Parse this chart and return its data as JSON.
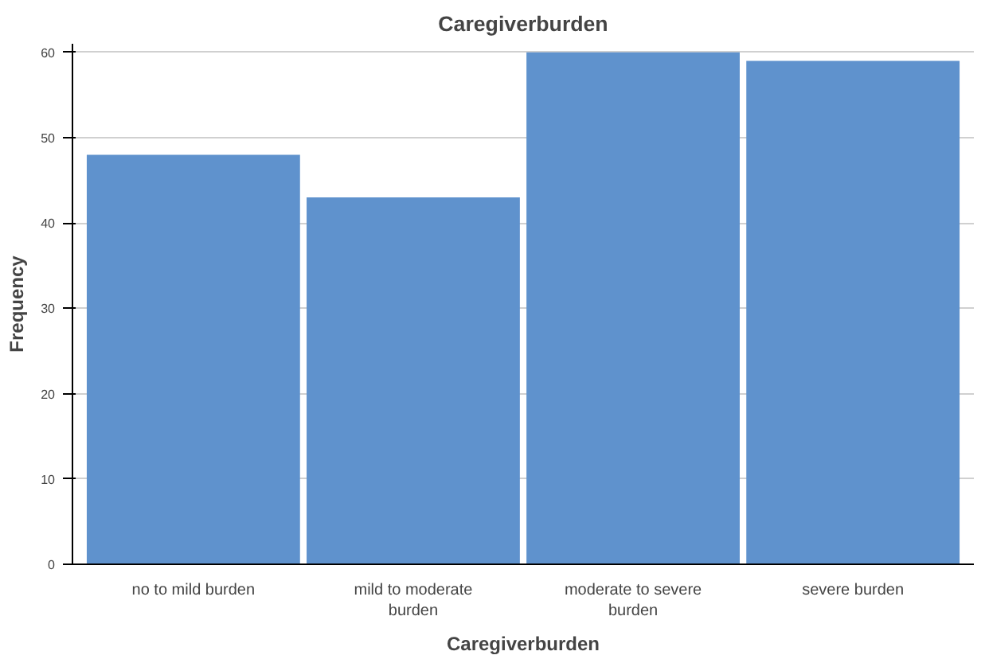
{
  "chart_data": {
    "type": "bar",
    "title": "Caregiverburden",
    "xlabel": "Caregiverburden",
    "ylabel": "Frequency",
    "categories": [
      "no to mild burden",
      "mild to moderate burden",
      "moderate to severe burden",
      "severe burden"
    ],
    "values": [
      48,
      43,
      60,
      59
    ],
    "color": "#5f92cd",
    "ylim": [
      0,
      61
    ],
    "yticks": [
      0,
      10,
      20,
      30,
      40,
      50,
      60
    ],
    "grid": "y"
  }
}
